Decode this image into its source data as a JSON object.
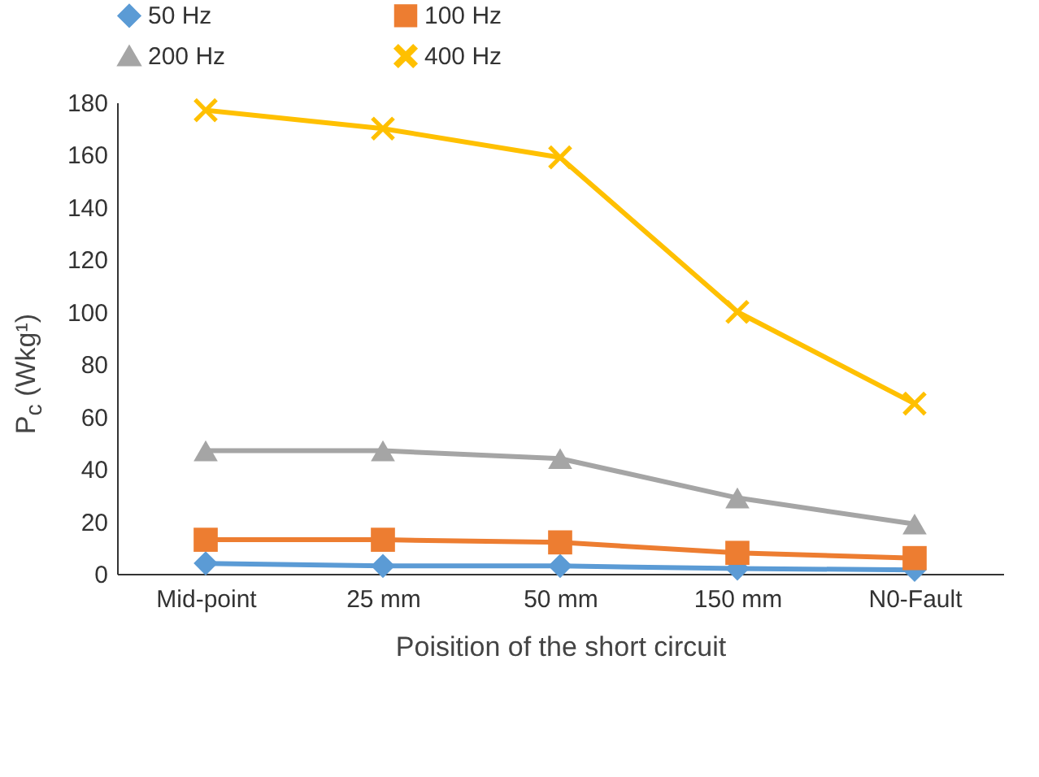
{
  "chart_data": {
    "type": "line",
    "xlabel": "Poisition of the short circuit",
    "ylabel": "P$_{c}$ (Wkg¹)",
    "categories": [
      "Mid-point",
      "25 mm",
      "50 mm",
      "150 mm",
      "N0-Fault"
    ],
    "series": [
      {
        "name": "50 Hz",
        "color": "#5b9bd5",
        "marker": "diamond",
        "values": [
          4,
          3,
          3,
          2,
          1.5
        ]
      },
      {
        "name": "100 Hz",
        "color": "#ed7d31",
        "marker": "square",
        "values": [
          13,
          13,
          12,
          8,
          6
        ]
      },
      {
        "name": "200 Hz",
        "color": "#a5a5a5",
        "marker": "triangle",
        "values": [
          47,
          47,
          44,
          29,
          19
        ]
      },
      {
        "name": "400 Hz",
        "color": "#ffc000",
        "marker": "cross",
        "values": [
          177,
          170,
          159,
          100,
          65
        ]
      }
    ],
    "ylim": [
      0,
      180
    ],
    "yticks": [
      0,
      20,
      40,
      60,
      80,
      100,
      120,
      140,
      160,
      180
    ],
    "grid": false,
    "legend": "top"
  }
}
